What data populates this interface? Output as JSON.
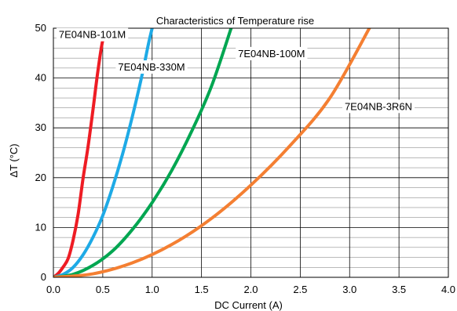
{
  "chart_data": {
    "type": "line",
    "title": "Characteristics of Temperature rise",
    "xlabel": "DC Current (A)",
    "ylabel": "ΔT (°C)",
    "xlim": [
      0,
      4
    ],
    "ylim": [
      0,
      50
    ],
    "xticks": [
      "0.0",
      "0.5",
      "1.0",
      "1.5",
      "2.0",
      "2.5",
      "3.0",
      "3.5",
      "4.0"
    ],
    "yticks": [
      "0",
      "10",
      "20",
      "30",
      "40",
      "50"
    ],
    "grid": true,
    "legend": "inline labels",
    "series": [
      {
        "name": "7E04NB-101M",
        "color": "#ee1c24",
        "x": [
          0.0,
          0.05,
          0.1,
          0.15,
          0.2,
          0.25,
          0.3,
          0.35,
          0.4,
          0.45,
          0.5,
          0.55
        ],
        "y": [
          0.0,
          0.8,
          2.1,
          3.8,
          7.5,
          12.6,
          19.8,
          26.1,
          33.5,
          41.3,
          47.6,
          50.0
        ]
      },
      {
        "name": "7E04NB-330M",
        "color": "#1eaae6",
        "x": [
          0.0,
          0.1,
          0.2,
          0.3,
          0.4,
          0.5,
          0.6,
          0.7,
          0.8,
          0.9,
          0.96,
          1.0
        ],
        "y": [
          0.0,
          0.6,
          2.0,
          4.5,
          8.0,
          12.4,
          18.1,
          24.7,
          32.3,
          40.8,
          46.6,
          50.0
        ]
      },
      {
        "name": "7E04NB-100M",
        "color": "#00a651",
        "x": [
          0.0,
          0.2,
          0.4,
          0.6,
          0.8,
          1.0,
          1.2,
          1.4,
          1.6,
          1.8
        ],
        "y": [
          0.0,
          0.6,
          2.4,
          5.3,
          9.6,
          15.0,
          21.5,
          29.3,
          38.3,
          50.0
        ]
      },
      {
        "name": "7E04NB-3R6N",
        "color": "#f47f32",
        "x": [
          0.0,
          0.4,
          0.8,
          1.2,
          1.6,
          2.0,
          2.4,
          2.8,
          3.2
        ],
        "y": [
          0.0,
          0.7,
          2.9,
          6.6,
          11.8,
          18.5,
          26.5,
          36.0,
          50.0
        ]
      }
    ]
  }
}
